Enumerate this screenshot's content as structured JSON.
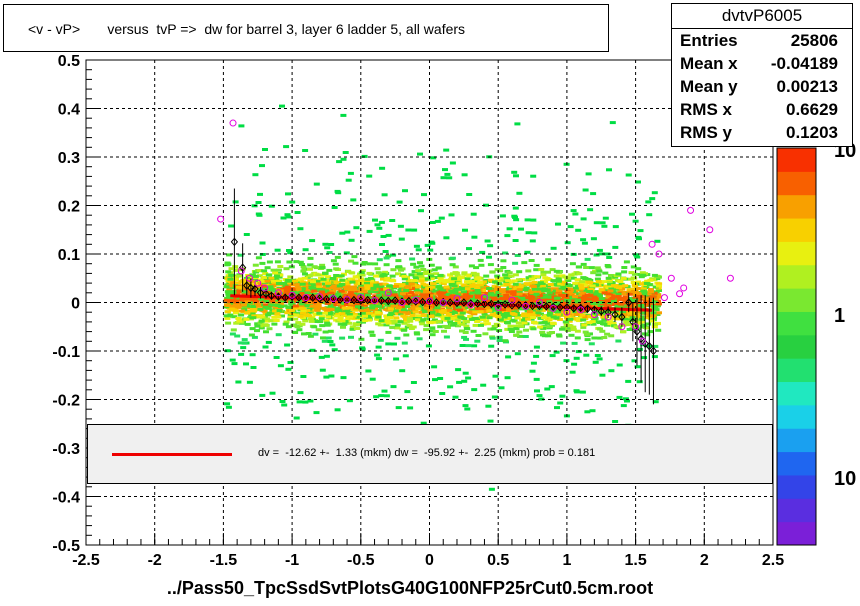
{
  "title": "<v - vP>       versus  tvP =>  dw for barrel 3, layer 6 ladder 5, all wafers",
  "stats": {
    "name": "dvtvP6005",
    "rows": [
      {
        "label": "Entries",
        "value": "25806"
      },
      {
        "label": "Mean x",
        "value": "-0.04189"
      },
      {
        "label": "Mean y",
        "value": "0.00213"
      },
      {
        "label": "RMS x",
        "value": "0.6629"
      },
      {
        "label": "RMS y",
        "value": "0.1203"
      }
    ]
  },
  "legend": {
    "text": "dv =  -12.62 +-  1.33 (mkm) dw =  -95.92 +-  2.25 (mkm) prob = 0.181",
    "line_color": "#ee0000"
  },
  "footer": "../Pass50_TpcSsdSvtPlotsG40G100NFP25rCut0.5cm.root",
  "chart_data": {
    "type": "scatter",
    "xlim": [
      -2.5,
      2.5
    ],
    "ylim": [
      -0.5,
      0.5
    ],
    "x_ticks": [
      "-2.5",
      "-2",
      "-1.5",
      "-1",
      "-0.5",
      "0",
      "0.5",
      "1",
      "1.5",
      "2",
      "2.5"
    ],
    "y_ticks": [
      "-0.5",
      "-0.4",
      "-0.3",
      "-0.2",
      "-0.1",
      "0",
      "0.1",
      "0.2",
      "0.3",
      "0.4",
      "0.5"
    ],
    "grid": true,
    "color_scale": {
      "labels": [
        "10",
        "1",
        "10"
      ],
      "colors": [
        "#7b1fd8",
        "#5a2ee0",
        "#3344e8",
        "#1f66f0",
        "#1aa0f0",
        "#1ad0e8",
        "#20e8c0",
        "#22e070",
        "#28d040",
        "#40e040",
        "#7ae830",
        "#b0f020",
        "#e8f010",
        "#f8d000",
        "#f8a000",
        "#f86000",
        "#f83000"
      ]
    },
    "series": [
      {
        "name": "black profile",
        "x": [
          -1.42,
          -1.36,
          -1.33,
          -1.3,
          -1.27,
          -1.23,
          -1.19,
          -1.15,
          -1.1,
          -1.05,
          -1.0,
          -0.95,
          -0.9,
          -0.85,
          -0.8,
          -0.75,
          -0.7,
          -0.65,
          -0.6,
          -0.55,
          -0.5,
          -0.45,
          -0.4,
          -0.35,
          -0.3,
          -0.25,
          -0.2,
          -0.15,
          -0.1,
          -0.05,
          0.0,
          0.05,
          0.1,
          0.15,
          0.2,
          0.25,
          0.3,
          0.35,
          0.4,
          0.45,
          0.5,
          0.55,
          0.6,
          0.65,
          0.7,
          0.75,
          0.8,
          0.85,
          0.9,
          0.95,
          1.0,
          1.05,
          1.1,
          1.15,
          1.2,
          1.25,
          1.3,
          1.35,
          1.4,
          1.45,
          1.48,
          1.51,
          1.54,
          1.57,
          1.6,
          1.63
        ],
        "y": [
          0.125,
          0.072,
          0.035,
          0.03,
          0.028,
          0.02,
          0.018,
          0.014,
          0.012,
          0.01,
          0.012,
          0.01,
          0.008,
          0.01,
          0.008,
          0.007,
          0.008,
          0.006,
          0.006,
          0.005,
          0.004,
          0.005,
          0.005,
          0.004,
          0.003,
          0.004,
          0.002,
          0.003,
          0.002,
          0.001,
          0.002,
          0.0,
          0.001,
          0.0,
          -0.001,
          0.0,
          -0.002,
          -0.002,
          -0.003,
          -0.003,
          -0.004,
          -0.004,
          -0.006,
          -0.005,
          -0.006,
          -0.007,
          -0.007,
          -0.008,
          -0.009,
          -0.01,
          -0.01,
          -0.012,
          -0.011,
          -0.013,
          -0.015,
          -0.018,
          -0.02,
          -0.025,
          -0.03,
          0.0,
          -0.04,
          -0.06,
          -0.075,
          -0.085,
          -0.09,
          -0.1
        ],
        "err": [
          0.11,
          0.05,
          0.02,
          0.02,
          0.015,
          0.012,
          0.01,
          0.008,
          0.006,
          0.005,
          0.005,
          0.004,
          0.004,
          0.004,
          0.003,
          0.003,
          0.003,
          0.003,
          0.003,
          0.003,
          0.003,
          0.003,
          0.003,
          0.003,
          0.003,
          0.003,
          0.003,
          0.003,
          0.003,
          0.003,
          0.003,
          0.003,
          0.003,
          0.003,
          0.003,
          0.003,
          0.003,
          0.003,
          0.003,
          0.003,
          0.003,
          0.003,
          0.003,
          0.003,
          0.003,
          0.003,
          0.004,
          0.004,
          0.004,
          0.004,
          0.005,
          0.005,
          0.006,
          0.007,
          0.008,
          0.01,
          0.012,
          0.015,
          0.02,
          0.02,
          0.04,
          0.07,
          0.09,
          0.1,
          0.1,
          0.11
        ]
      },
      {
        "name": "magenta profile",
        "x": [
          -1.52,
          -1.43,
          -1.37,
          -1.31,
          -1.25,
          -1.2,
          -1.1,
          -1.0,
          -0.9,
          -0.8,
          -0.7,
          -0.6,
          -0.5,
          -0.4,
          -0.3,
          -0.2,
          -0.1,
          0.0,
          0.1,
          0.2,
          0.3,
          0.4,
          0.5,
          0.6,
          0.7,
          0.8,
          0.9,
          1.0,
          1.1,
          1.2,
          1.3,
          1.4,
          1.5,
          1.55,
          1.62,
          1.67,
          1.71,
          1.76,
          1.82,
          1.85,
          1.9,
          2.04,
          2.19
        ],
        "y": [
          0.172,
          0.37,
          0.065,
          0.05,
          0.04,
          0.03,
          0.02,
          0.015,
          0.01,
          0.012,
          0.008,
          0.006,
          0.01,
          0.004,
          0.02,
          0.0,
          0.005,
          0.003,
          0.0,
          0.008,
          -0.005,
          0.01,
          -0.01,
          0.005,
          -0.008,
          0.0,
          -0.012,
          -0.02,
          -0.015,
          -0.025,
          -0.03,
          -0.05,
          -0.05,
          -0.08,
          0.12,
          0.1,
          0.01,
          0.05,
          0.018,
          0.03,
          0.19,
          0.15,
          0.05
        ]
      }
    ],
    "fit_line": {
      "x": [
        -1.45,
        1.62
      ],
      "y": [
        0.014,
        -0.016
      ],
      "color": "#ee0000"
    }
  }
}
